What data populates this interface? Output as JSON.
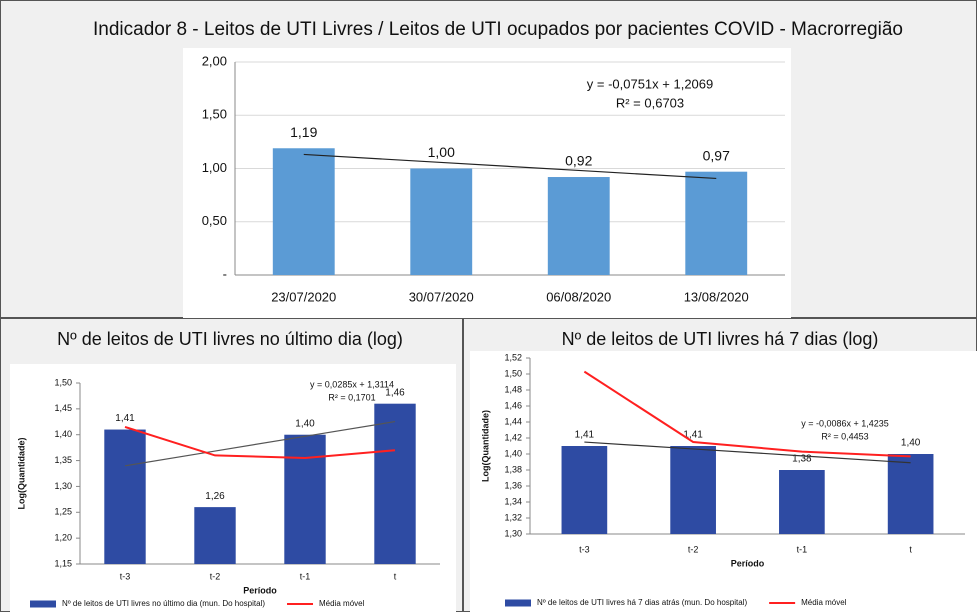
{
  "chart_data": [
    {
      "type": "bar",
      "title": "Indicador 8 - Leitos de UTI Livres / Leitos de UTI ocupados por pacientes COVID - Macrorregião",
      "categories": [
        "23/07/2020",
        "30/07/2020",
        "06/08/2020",
        "13/08/2020"
      ],
      "values": [
        1.19,
        1.0,
        0.92,
        0.97
      ],
      "value_labels": [
        "1,19",
        "1,00",
        "0,92",
        "0,97"
      ],
      "color": "#5b9bd5",
      "ylim": [
        0,
        2
      ],
      "yticks": [
        {
          "value": 0,
          "label": "-"
        },
        {
          "value": 0.5,
          "label": "0,50"
        },
        {
          "value": 1,
          "label": "1,00"
        },
        {
          "value": 1.5,
          "label": "1,50"
        },
        {
          "value": 2,
          "label": "2,00"
        }
      ],
      "grid": true,
      "trendline": {
        "values": [
          1.1318,
          1.0567,
          0.9816,
          0.9065
        ],
        "color": "#222222",
        "equation": "y = -0,0751x + 1,2069",
        "r2": "R² = 0,6703"
      }
    },
    {
      "type": "bar",
      "title": "Nº de leitos de UTI livres no último dia (log)",
      "y_label": "Log(Quantidade)",
      "x_label": "Período",
      "categories": [
        "t-3",
        "t-2",
        "t-1",
        "t"
      ],
      "series": [
        {
          "name": "Nº de leitos de UTI livres no último dia (mun. Do hospital)",
          "color": "#2e4ba3",
          "type": "bar",
          "values": [
            1.41,
            1.26,
            1.4,
            1.46
          ],
          "value_labels": [
            "1,41",
            "1,26",
            "1,40",
            "1,46"
          ]
        },
        {
          "name": "Média móvel",
          "color": "#ff2020",
          "type": "line",
          "values": [
            1.415,
            1.36,
            1.355,
            1.37
          ]
        }
      ],
      "ylim": [
        1.15,
        1.5
      ],
      "yticks": [
        {
          "value": 1.15,
          "label": "1,15"
        },
        {
          "value": 1.2,
          "label": "1,20"
        },
        {
          "value": 1.25,
          "label": "1,25"
        },
        {
          "value": 1.3,
          "label": "1,30"
        },
        {
          "value": 1.35,
          "label": "1,35"
        },
        {
          "value": 1.4,
          "label": "1,40"
        },
        {
          "value": 1.45,
          "label": "1,45"
        },
        {
          "value": 1.5,
          "label": "1,50"
        }
      ],
      "grid": false,
      "trendline": {
        "values": [
          1.3399,
          1.3684,
          1.3969,
          1.4254
        ],
        "color": "#555555",
        "equation": "y = 0,0285x + 1,3114",
        "r2": "R² = 0,1701"
      }
    },
    {
      "type": "bar",
      "title": "Nº de leitos de UTI livres há 7 dias (log)",
      "y_label": "Log(Quantidade)",
      "x_label": "Período",
      "categories": [
        "t-3",
        "t-2",
        "t-1",
        "t"
      ],
      "series": [
        {
          "name": "Nº de leitos de UTI livres há 7 dias atrás (mun. Do hospital)",
          "color": "#2e4ba3",
          "type": "bar",
          "values": [
            1.41,
            1.41,
            1.38,
            1.4
          ],
          "value_labels": [
            "1,41",
            "1,41",
            "1,38",
            "1,40"
          ]
        },
        {
          "name": "Média móvel",
          "color": "#ff2020",
          "type": "line",
          "values": [
            1.503,
            1.415,
            1.403,
            1.397
          ]
        }
      ],
      "ylim": [
        1.3,
        1.52
      ],
      "yticks": [
        {
          "value": 1.3,
          "label": "1,30"
        },
        {
          "value": 1.32,
          "label": "1,32"
        },
        {
          "value": 1.34,
          "label": "1,34"
        },
        {
          "value": 1.36,
          "label": "1,36"
        },
        {
          "value": 1.38,
          "label": "1,38"
        },
        {
          "value": 1.4,
          "label": "1,40"
        },
        {
          "value": 1.42,
          "label": "1,42"
        },
        {
          "value": 1.44,
          "label": "1,44"
        },
        {
          "value": 1.46,
          "label": "1,46"
        },
        {
          "value": 1.48,
          "label": "1,48"
        },
        {
          "value": 1.5,
          "label": "1,50"
        },
        {
          "value": 1.52,
          "label": "1,52"
        }
      ],
      "grid": false,
      "trendline": {
        "values": [
          1.4149,
          1.4063,
          1.3977,
          1.3891
        ],
        "color": "#333333",
        "equation": "y = -0,0086x + 1,4235",
        "r2": "R² = 0,4453"
      }
    }
  ]
}
